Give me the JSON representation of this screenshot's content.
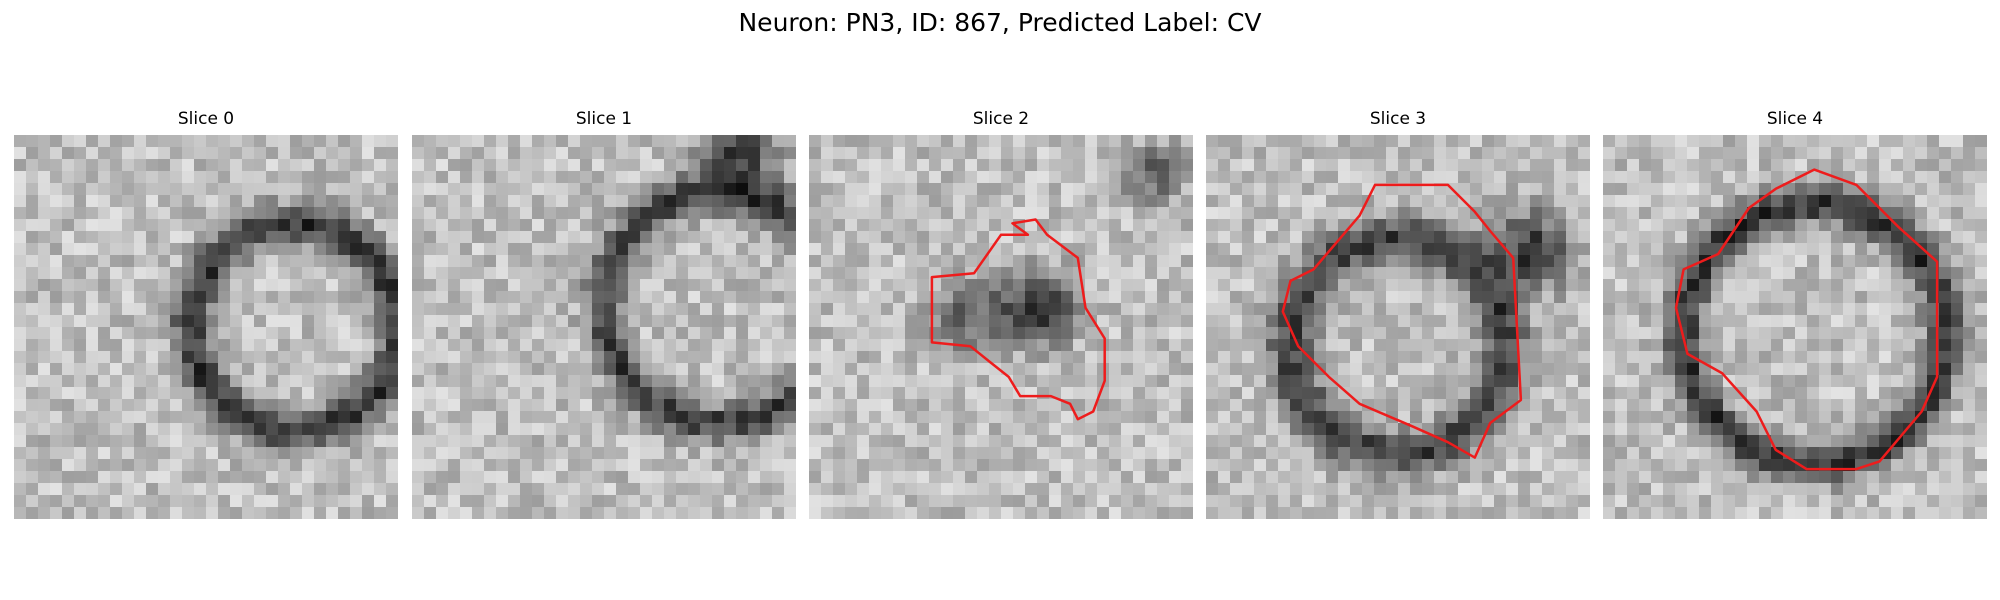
{
  "figure": {
    "title": "Neuron: PN3, ID: 867, Predicted Label: CV",
    "contour_color": "#ee1c1c",
    "colormap": "grayscale"
  },
  "panels": [
    {
      "title": "Slice 0",
      "has_contour": false
    },
    {
      "title": "Slice 1",
      "has_contour": false
    },
    {
      "title": "Slice 2",
      "has_contour": true
    },
    {
      "title": "Slice 3",
      "has_contour": true
    },
    {
      "title": "Slice 4",
      "has_contour": true
    }
  ]
}
